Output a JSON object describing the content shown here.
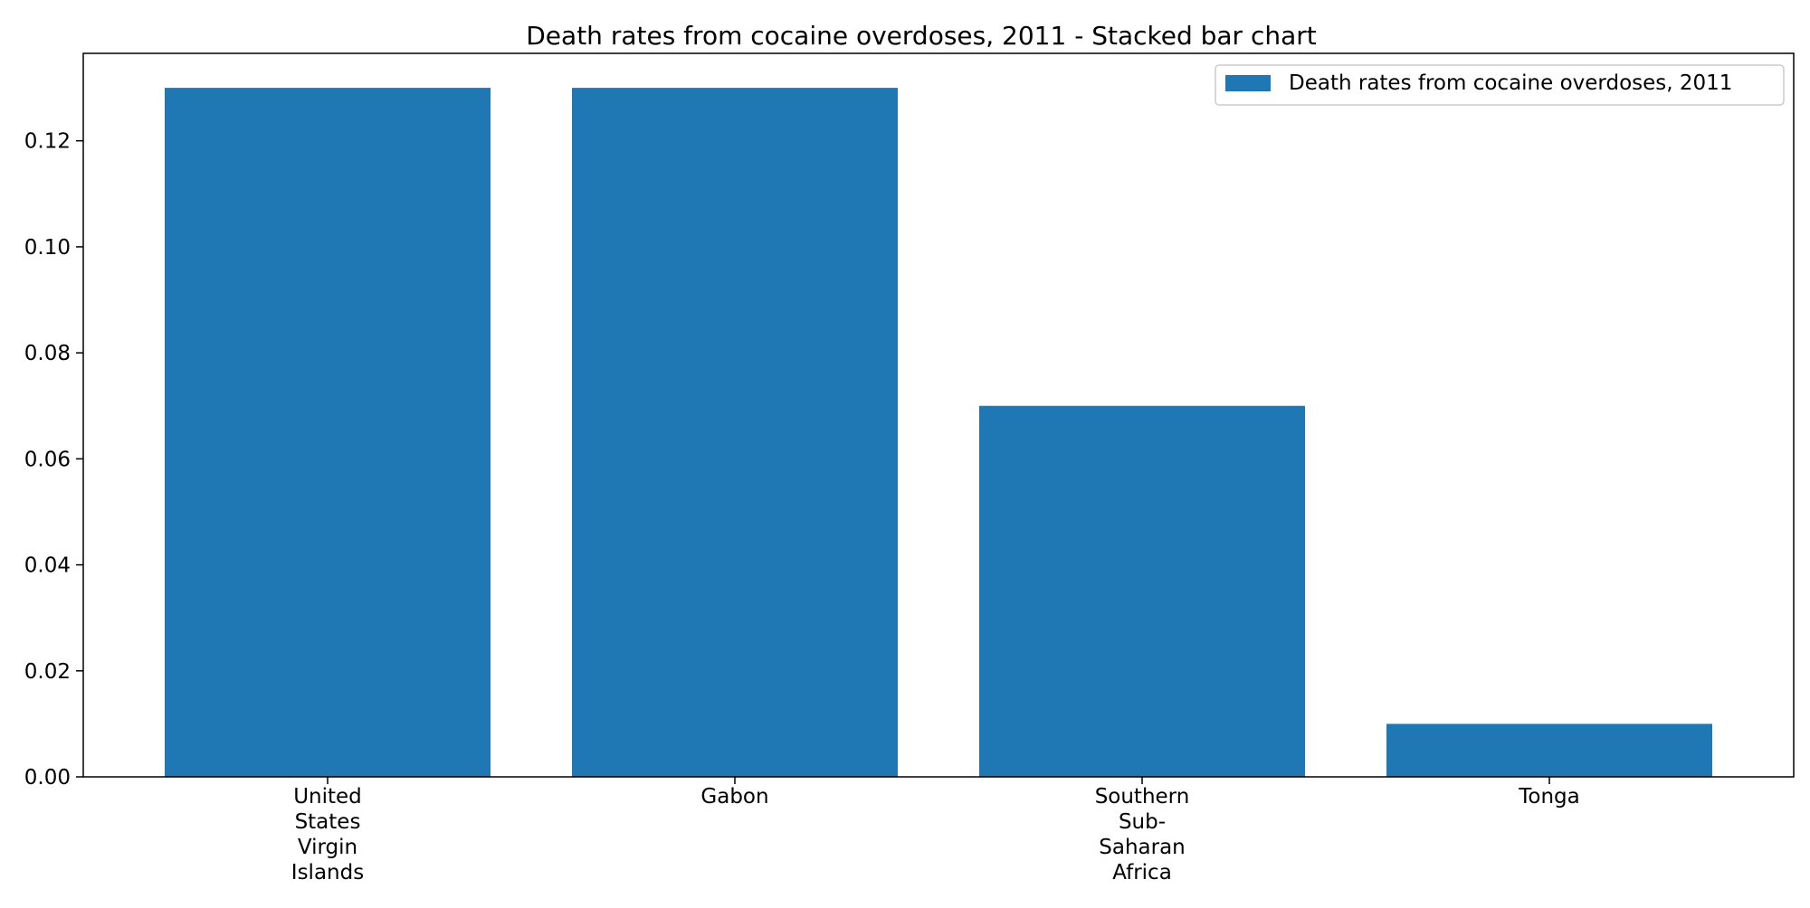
{
  "chart_data": {
    "type": "bar",
    "title": "Death rates from cocaine overdoses, 2011 - Stacked bar chart",
    "categories": [
      "United States Virgin Islands",
      "Gabon",
      "Southern Sub-Saharan Africa",
      "Tonga"
    ],
    "category_tick_lines": [
      [
        "United",
        "States",
        "Virgin",
        "Islands"
      ],
      [
        "Gabon"
      ],
      [
        "Southern",
        "Sub-",
        "Saharan",
        "Africa"
      ],
      [
        "Tonga"
      ]
    ],
    "series": [
      {
        "name": "Death rates from cocaine overdoses, 2011",
        "values": [
          0.13,
          0.13,
          0.07,
          0.01
        ],
        "color": "#1f77b4"
      }
    ],
    "ylim": [
      0,
      0.1365
    ],
    "yticks": [
      0.0,
      0.02,
      0.04,
      0.06,
      0.08,
      0.1,
      0.12
    ],
    "ytick_labels": [
      "0.00",
      "0.02",
      "0.04",
      "0.06",
      "0.08",
      "0.10",
      "0.12"
    ],
    "grid": false,
    "legend_position": "top-right"
  }
}
